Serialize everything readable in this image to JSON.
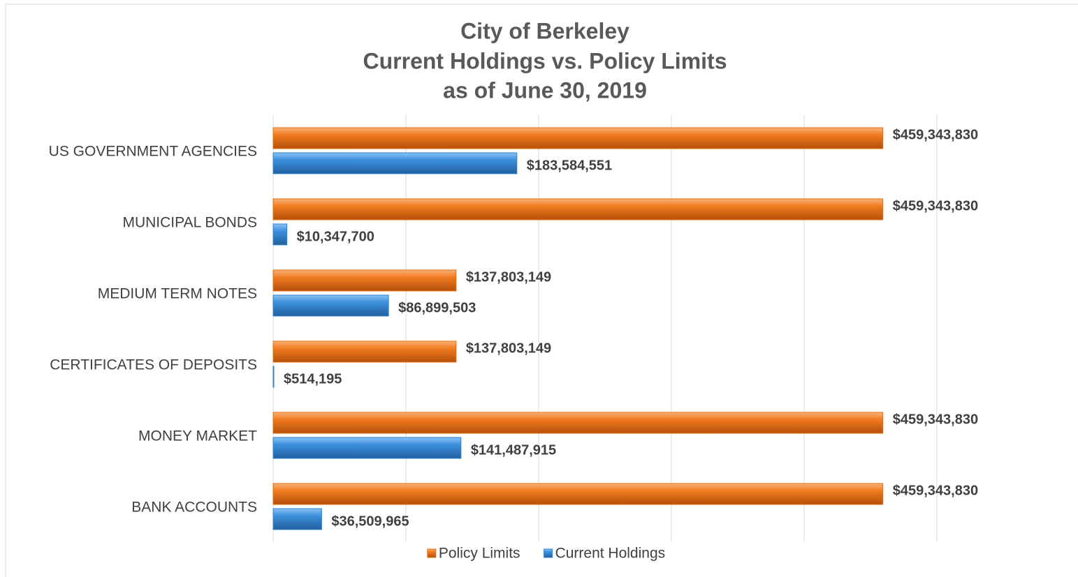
{
  "chart_data": {
    "type": "hbar",
    "title": [
      "City of Berkeley",
      "Current Holdings vs. Policy Limits",
      "as of June 30, 2019"
    ],
    "categories": [
      "US GOVERNMENT AGENCIES",
      "MUNICIPAL BONDS",
      "MEDIUM TERM NOTES",
      "CERTIFICATES OF DEPOSITS",
      "MONEY MARKET",
      "BANK ACCOUNTS"
    ],
    "series": [
      {
        "name": "Policy Limits",
        "color": "#e46c0a",
        "values": [
          459343830,
          459343830,
          137803149,
          137803149,
          459343830,
          459343830
        ],
        "value_labels": [
          "$459,343,830",
          "$459,343,830",
          "$137,803,149",
          "$137,803,149",
          "$459,343,830",
          "$459,343,830"
        ]
      },
      {
        "name": "Current Holdings",
        "color": "#2f80cf",
        "values": [
          183584551,
          10347700,
          86899503,
          514195,
          141487915,
          36509965
        ],
        "value_labels": [
          "$183,584,551",
          "$10,347,700",
          "$86,899,503",
          "$514,195",
          "$141,487,915",
          "$36,509,965"
        ]
      }
    ],
    "xlim": [
      0,
      600000000
    ],
    "xticks": [
      0,
      100000000,
      200000000,
      300000000,
      400000000,
      500000000
    ],
    "grid": true,
    "legend": "bottom"
  }
}
